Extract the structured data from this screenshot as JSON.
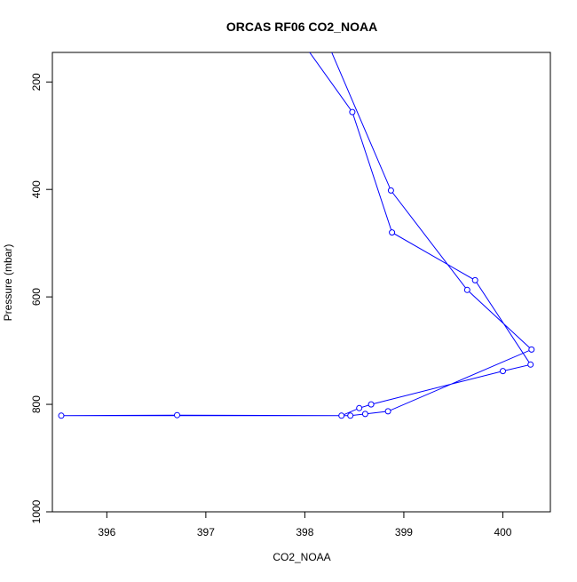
{
  "chart_data": {
    "type": "line",
    "title": "ORCAS RF06 CO2_NOAA",
    "xlabel": "CO2_NOAA",
    "ylabel": "Pressure (mbar)",
    "xlim": [
      395.45,
      400.48
    ],
    "ylim": [
      1000,
      145
    ],
    "y_reversed": true,
    "x_ticks": [
      396,
      397,
      398,
      399,
      400
    ],
    "y_ticks": [
      200,
      400,
      600,
      800,
      1000
    ],
    "marker": "open-circle",
    "series": [
      {
        "color": "#0000ff",
        "points": [
          {
            "x": 398.03,
            "y": 140
          },
          {
            "x": 398.48,
            "y": 256
          },
          {
            "x": 398.88,
            "y": 480
          },
          {
            "x": 399.72,
            "y": 569
          },
          {
            "x": 400.28,
            "y": 726
          },
          {
            "x": 400.0,
            "y": 738
          },
          {
            "x": 398.67,
            "y": 800
          },
          {
            "x": 398.55,
            "y": 807
          },
          {
            "x": 398.37,
            "y": 821
          },
          {
            "x": 396.71,
            "y": 820
          },
          {
            "x": 395.54,
            "y": 821
          },
          {
            "x": 398.46,
            "y": 821
          },
          {
            "x": 398.61,
            "y": 818
          },
          {
            "x": 398.84,
            "y": 813
          },
          {
            "x": 400.29,
            "y": 698
          },
          {
            "x": 399.64,
            "y": 587
          },
          {
            "x": 398.87,
            "y": 402
          },
          {
            "x": 398.26,
            "y": 140
          }
        ],
        "markers": [
          {
            "x": 398.48,
            "y": 256
          },
          {
            "x": 398.88,
            "y": 480
          },
          {
            "x": 399.72,
            "y": 569
          },
          {
            "x": 400.28,
            "y": 726
          },
          {
            "x": 400.0,
            "y": 738
          },
          {
            "x": 398.67,
            "y": 800
          },
          {
            "x": 398.55,
            "y": 807
          },
          {
            "x": 398.37,
            "y": 821
          },
          {
            "x": 396.71,
            "y": 820
          },
          {
            "x": 395.54,
            "y": 821
          },
          {
            "x": 398.46,
            "y": 821
          },
          {
            "x": 398.61,
            "y": 818
          },
          {
            "x": 398.84,
            "y": 813
          },
          {
            "x": 400.29,
            "y": 698
          },
          {
            "x": 399.64,
            "y": 587
          },
          {
            "x": 398.87,
            "y": 402
          }
        ]
      }
    ]
  }
}
